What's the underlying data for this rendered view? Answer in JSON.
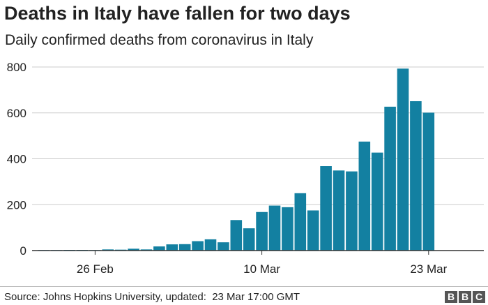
{
  "title": "Deaths in Italy have fallen for two days",
  "subtitle": "Daily confirmed deaths from coronavirus in Italy",
  "source": "Source: Johns Hopkins University, updated:  23 Mar 17:00 GMT",
  "logo": {
    "letters": [
      "B",
      "B",
      "C"
    ]
  },
  "colors": {
    "bar": "#1380a1",
    "grid": "#cbcbcb",
    "axis": "#333333",
    "text": "#222222"
  },
  "chart_data": {
    "type": "bar",
    "title": "Deaths in Italy have fallen for two days",
    "subtitle": "Daily confirmed deaths from coronavirus in Italy",
    "xlabel": "",
    "ylabel": "",
    "ylim": [
      0,
      800
    ],
    "yticks": [
      0,
      200,
      400,
      600,
      800
    ],
    "grid": true,
    "x_tick_labels": [
      {
        "category": "26 Feb",
        "label": "26 Feb"
      },
      {
        "category": "10 Mar",
        "label": "10 Mar"
      },
      {
        "category": "23 Mar",
        "label": "23 Mar"
      }
    ],
    "categories": [
      "22 Feb",
      "23 Feb",
      "24 Feb",
      "25 Feb",
      "26 Feb",
      "27 Feb",
      "28 Feb",
      "29 Feb",
      "1 Mar",
      "2 Mar",
      "3 Mar",
      "4 Mar",
      "5 Mar",
      "6 Mar",
      "7 Mar",
      "8 Mar",
      "9 Mar",
      "10 Mar",
      "11 Mar",
      "12 Mar",
      "13 Mar",
      "14 Mar",
      "15 Mar",
      "16 Mar",
      "17 Mar",
      "18 Mar",
      "19 Mar",
      "20 Mar",
      "21 Mar",
      "22 Mar",
      "23 Mar"
    ],
    "values": [
      1,
      1,
      3,
      3,
      1,
      5,
      4,
      8,
      5,
      18,
      27,
      28,
      41,
      49,
      36,
      133,
      97,
      168,
      196,
      189,
      250,
      175,
      368,
      349,
      345,
      475,
      427,
      627,
      793,
      651,
      601
    ]
  }
}
